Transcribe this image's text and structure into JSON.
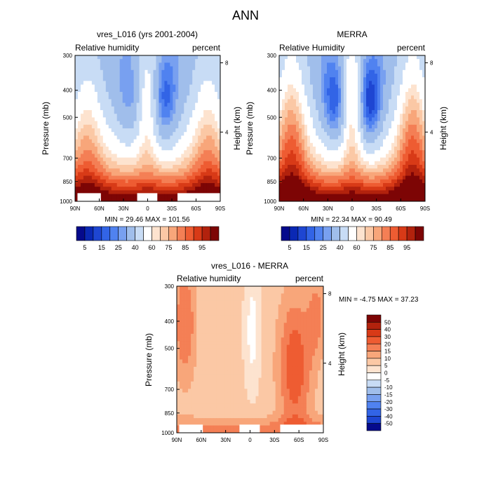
{
  "figure_title": "ANN",
  "chart_data": [
    {
      "type": "heatmap",
      "id": "model",
      "title": "vres_L016 (yrs 2001-2004)",
      "left_label": "Relative humidity",
      "right_label": "percent",
      "ylabel": "Pressure (mb)",
      "y2label": "Height (km)",
      "x_ticks": [
        "90N",
        "60N",
        "30N",
        "0",
        "30S",
        "60S",
        "90S"
      ],
      "x_tick_values": [
        90,
        60,
        30,
        0,
        -30,
        -60,
        -90
      ],
      "y_ticks": [
        "300",
        "400",
        "500",
        "700",
        "850",
        "1000"
      ],
      "y_tick_values": [
        300,
        400,
        500,
        700,
        850,
        1000
      ],
      "y2_ticks": [
        "8",
        "4"
      ],
      "y2_tick_values": [
        8,
        4
      ],
      "xlim": [
        90,
        -90
      ],
      "ylim": [
        1000,
        300
      ],
      "min_max": "MIN =  29.46  MAX = 101.56",
      "colorbar": {
        "orientation": "horizontal",
        "labels": [
          "5",
          "15",
          "25",
          "40",
          "60",
          "75",
          "85",
          "95"
        ],
        "colors": [
          "#050a8c",
          "#0a28b4",
          "#1e46d2",
          "#3264e6",
          "#5082f0",
          "#78a0f0",
          "#a0beeb",
          "#c8dcf5",
          "#ffffff",
          "#fde3cf",
          "#fbc8a5",
          "#f8a67a",
          "#f47f55",
          "#ee5c32",
          "#d83a17",
          "#b2220d",
          "#7d0505"
        ]
      },
      "field_type": "rh",
      "params": {
        "lowMid": 25,
        "lowSide": 20,
        "hemiMid": 0,
        "dipN": 12,
        "dipS": 22
      },
      "missing_regions": [
        {
          "lat": [
            87,
            58
          ],
          "p": [
            935,
            1000
          ]
        },
        {
          "lat": [
            13,
            -12
          ],
          "p": [
            935,
            1000
          ]
        },
        {
          "lat": [
            -37,
            -90
          ],
          "p": [
            935,
            1000
          ]
        }
      ]
    },
    {
      "type": "heatmap",
      "id": "obs",
      "title": "MERRA",
      "left_label": "Relative Humidity",
      "right_label": "percent",
      "ylabel": "Pressure (mb)",
      "y2label": "Height (km)",
      "x_ticks": [
        "90N",
        "60N",
        "30N",
        "0",
        "30S",
        "60S",
        "90S"
      ],
      "x_tick_values": [
        90,
        60,
        30,
        0,
        -30,
        -60,
        -90
      ],
      "y_ticks": [
        "300",
        "400",
        "500",
        "700",
        "850",
        "1000"
      ],
      "y_tick_values": [
        300,
        400,
        500,
        700,
        850,
        1000
      ],
      "y2_ticks": [
        "8",
        "4"
      ],
      "y2_tick_values": [
        8,
        4
      ],
      "xlim": [
        90,
        -90
      ],
      "ylim": [
        1000,
        300
      ],
      "min_max": "MIN =  22.34  MAX =  90.49",
      "colorbar": {
        "orientation": "horizontal",
        "labels": [
          "5",
          "15",
          "25",
          "40",
          "60",
          "75",
          "85",
          "95"
        ],
        "colors": [
          "#050a8c",
          "#0a28b4",
          "#1e46d2",
          "#3264e6",
          "#5082f0",
          "#78a0f0",
          "#a0beeb",
          "#c8dcf5",
          "#ffffff",
          "#fde3cf",
          "#fbc8a5",
          "#f8a67a",
          "#f47f55",
          "#ee5c32",
          "#d83a17",
          "#b2220d",
          "#7d0505"
        ]
      },
      "field_type": "rh",
      "params": {
        "lowMid": 35,
        "lowSide": 30,
        "hemiMid": 0,
        "dipN": 25,
        "dipS": 30
      },
      "missing_regions": []
    },
    {
      "type": "heatmap",
      "id": "diff",
      "title": "vres_L016 - MERRA",
      "left_label": "Relative humidity",
      "right_label": "percent",
      "ylabel": "Pressure (mb)",
      "y2label": "Height (km)",
      "x_ticks": [
        "90N",
        "60N",
        "30N",
        "0",
        "30S",
        "60S",
        "90S"
      ],
      "x_tick_values": [
        90,
        60,
        30,
        0,
        -30,
        -60,
        -90
      ],
      "y_ticks": [
        "300",
        "400",
        "500",
        "700",
        "850",
        "1000"
      ],
      "y_tick_values": [
        300,
        400,
        500,
        700,
        850,
        1000
      ],
      "y2_ticks": [
        "8",
        "4"
      ],
      "y2_tick_values": [
        8,
        4
      ],
      "xlim": [
        90,
        -90
      ],
      "ylim": [
        1000,
        300
      ],
      "min_max": "MIN =  -4.75  MAX =  37.23",
      "colorbar": {
        "orientation": "vertical",
        "labels": [
          "50",
          "40",
          "30",
          "20",
          "15",
          "10",
          "5",
          "0",
          "-5",
          "-10",
          "-15",
          "-20",
          "-30",
          "-40",
          "-50"
        ],
        "colors": [
          "#7d0505",
          "#b2220d",
          "#d83a17",
          "#ee5c32",
          "#f47f55",
          "#f8a67a",
          "#fbc8a5",
          "#fde3cf",
          "#ffffff",
          "#c8dcf5",
          "#a0beeb",
          "#78a0f0",
          "#5082f0",
          "#3264e6",
          "#1e46d2",
          "#050a8c"
        ]
      },
      "field_type": "diff",
      "params": {},
      "missing_regions": [
        {
          "lat": [
            87,
            58
          ],
          "p": [
            935,
            1000
          ]
        },
        {
          "lat": [
            13,
            -12
          ],
          "p": [
            935,
            1000
          ]
        },
        {
          "lat": [
            -37,
            -90
          ],
          "p": [
            935,
            1000
          ]
        }
      ]
    }
  ]
}
